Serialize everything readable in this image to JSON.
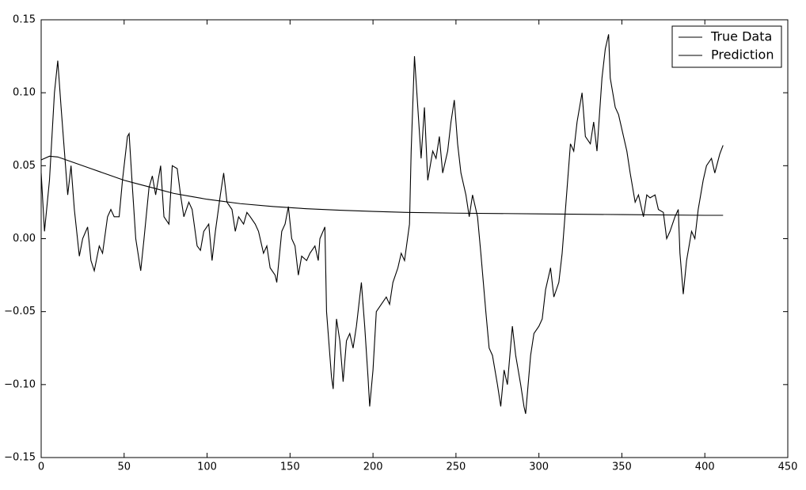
{
  "chart_data": {
    "type": "line",
    "xlim": [
      0,
      450
    ],
    "xticks": [
      0,
      50,
      100,
      150,
      200,
      250,
      300,
      350,
      400,
      450
    ],
    "ylim": [
      -0.15,
      0.15
    ],
    "yticks": [
      {
        "value": -0.15,
        "label": "−0.15"
      },
      {
        "value": -0.1,
        "label": "−0.10"
      },
      {
        "value": -0.05,
        "label": "−0.05"
      },
      {
        "value": 0,
        "label": "0.00"
      },
      {
        "value": 0.05,
        "label": "0.05"
      },
      {
        "value": 0.1,
        "label": "0.10"
      },
      0.15
    ],
    "legend": "upper right",
    "series": [
      {
        "name": "True Data",
        "color": "#000000",
        "x": [
          0,
          2,
          5,
          8,
          10,
          12,
          14,
          16,
          18,
          20,
          23,
          25,
          28,
          30,
          32,
          35,
          37,
          40,
          42,
          44,
          47,
          49,
          52,
          53,
          55,
          57,
          60,
          62,
          65,
          67,
          69,
          72,
          74,
          77,
          79,
          82,
          84,
          86,
          89,
          91,
          94,
          96,
          98,
          101,
          103,
          105,
          108,
          110,
          112,
          115,
          117,
          119,
          122,
          124,
          126,
          129,
          131,
          134,
          136,
          138,
          141,
          142,
          145,
          147,
          149,
          151,
          153,
          155,
          157,
          160,
          162,
          165,
          167,
          168,
          171,
          172,
          175,
          176,
          178,
          180,
          182,
          184,
          186,
          188,
          190,
          193,
          195,
          197,
          198,
          200,
          202,
          205,
          208,
          210,
          212,
          215,
          217,
          219,
          222,
          223,
          225,
          227,
          229,
          231,
          233,
          236,
          238,
          240,
          242,
          245,
          247,
          249,
          251,
          253,
          256,
          258,
          260,
          263,
          265,
          268,
          270,
          272,
          275,
          277,
          279,
          281,
          284,
          286,
          289,
          291,
          292,
          295,
          297,
          300,
          302,
          304,
          307,
          309,
          312,
          314,
          316,
          319,
          321,
          323,
          326,
          328,
          331,
          333,
          335,
          338,
          340,
          342,
          343,
          346,
          348,
          351,
          353,
          355,
          358,
          360,
          363,
          365,
          367,
          370,
          372,
          375,
          377,
          379,
          382,
          384,
          385,
          387,
          389,
          392,
          394,
          396,
          399,
          401,
          404,
          406,
          409,
          411
        ],
        "values": [
          0.045,
          0.005,
          0.04,
          0.1,
          0.122,
          0.09,
          0.06,
          0.03,
          0.05,
          0.02,
          -0.012,
          0.0,
          0.008,
          -0.015,
          -0.022,
          -0.005,
          -0.01,
          0.015,
          0.02,
          0.015,
          0.015,
          0.04,
          0.07,
          0.072,
          0.035,
          0.0,
          -0.022,
          0.0,
          0.035,
          0.043,
          0.03,
          0.05,
          0.015,
          0.01,
          0.05,
          0.048,
          0.03,
          0.015,
          0.025,
          0.02,
          -0.005,
          -0.008,
          0.005,
          0.01,
          -0.015,
          0.005,
          0.03,
          0.045,
          0.025,
          0.02,
          0.005,
          0.015,
          0.01,
          0.018,
          0.015,
          0.01,
          0.005,
          -0.01,
          -0.005,
          -0.02,
          -0.025,
          -0.03,
          0.005,
          0.01,
          0.022,
          0.0,
          -0.005,
          -0.025,
          -0.012,
          -0.015,
          -0.01,
          -0.005,
          -0.015,
          0.0,
          0.008,
          -0.05,
          -0.095,
          -0.103,
          -0.055,
          -0.07,
          -0.098,
          -0.07,
          -0.065,
          -0.075,
          -0.06,
          -0.03,
          -0.06,
          -0.095,
          -0.115,
          -0.09,
          -0.05,
          -0.045,
          -0.04,
          -0.045,
          -0.03,
          -0.02,
          -0.01,
          -0.015,
          0.01,
          0.06,
          0.125,
          0.09,
          0.055,
          0.09,
          0.04,
          0.06,
          0.055,
          0.07,
          0.045,
          0.06,
          0.08,
          0.095,
          0.065,
          0.045,
          0.03,
          0.015,
          0.03,
          0.015,
          -0.01,
          -0.05,
          -0.075,
          -0.08,
          -0.1,
          -0.115,
          -0.09,
          -0.1,
          -0.06,
          -0.08,
          -0.1,
          -0.115,
          -0.12,
          -0.08,
          -0.065,
          -0.06,
          -0.055,
          -0.035,
          -0.02,
          -0.04,
          -0.03,
          -0.01,
          0.02,
          0.065,
          0.06,
          0.08,
          0.1,
          0.07,
          0.065,
          0.08,
          0.06,
          0.11,
          0.13,
          0.14,
          0.11,
          0.09,
          0.085,
          0.07,
          0.06,
          0.045,
          0.025,
          0.03,
          0.015,
          0.03,
          0.028,
          0.03,
          0.02,
          0.018,
          0.0,
          0.005,
          0.015,
          0.02,
          -0.01,
          -0.038,
          -0.015,
          0.005,
          0.0,
          0.02,
          0.04,
          0.05,
          0.055,
          0.045,
          0.058,
          0.064
        ]
      },
      {
        "name": "Prediction",
        "color": "#000000",
        "x": [
          0,
          5,
          10,
          20,
          30,
          40,
          50,
          60,
          70,
          80,
          90,
          100,
          120,
          140,
          160,
          180,
          200,
          220,
          250,
          300,
          350,
          400,
          411
        ],
        "values": [
          0.054,
          0.0565,
          0.056,
          0.052,
          0.048,
          0.044,
          0.04,
          0.037,
          0.034,
          0.031,
          0.029,
          0.027,
          0.024,
          0.022,
          0.0205,
          0.0195,
          0.0187,
          0.018,
          0.0175,
          0.017,
          0.0165,
          0.016,
          0.016
        ]
      }
    ]
  }
}
